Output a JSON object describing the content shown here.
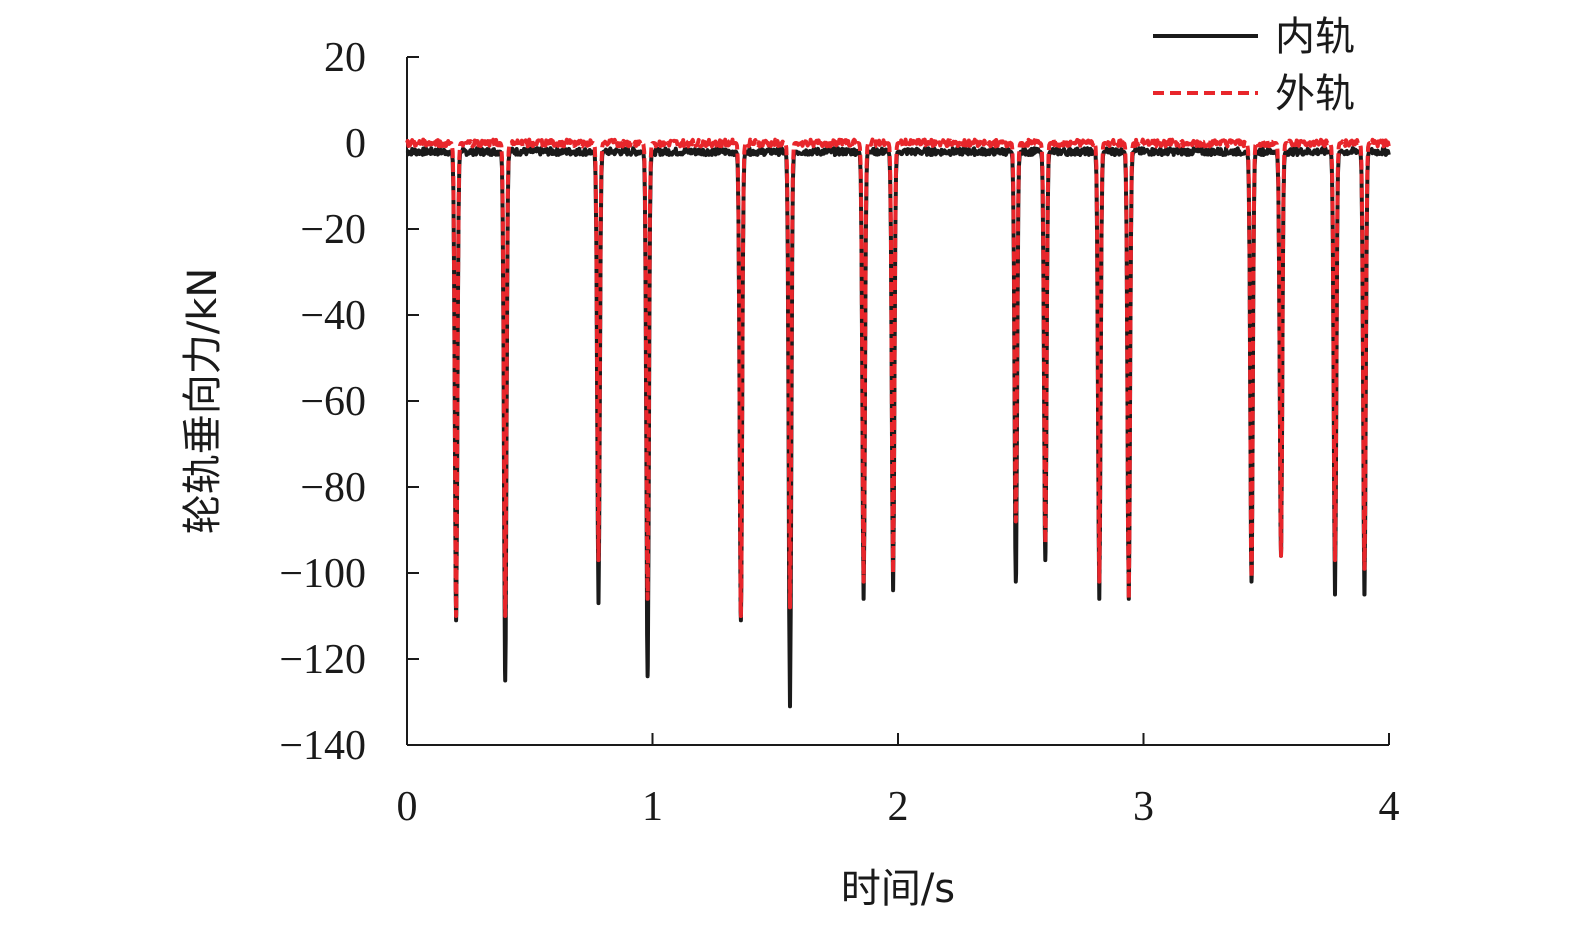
{
  "chart_data": {
    "type": "line",
    "xlabel": "时间/s",
    "ylabel": "轮轨垂向力/kN",
    "xlim": [
      0,
      4
    ],
    "ylim": [
      -140,
      20
    ],
    "xticks": [
      "0",
      "1",
      "2",
      "3",
      "4"
    ],
    "yticks": [
      "20",
      "0",
      "−20",
      "−40",
      "−60",
      "−80",
      "−100",
      "−120",
      "−140"
    ],
    "grid": false,
    "legend_position": "top-right",
    "colors": {
      "inner": "#1a1a1a",
      "outer": "#e8262b"
    },
    "series": [
      {
        "name": "内轨",
        "style": "solid",
        "baseline": -2,
        "spike_times": [
          0.2,
          0.4,
          0.78,
          0.98,
          1.36,
          1.56,
          1.86,
          1.98,
          2.48,
          2.6,
          2.82,
          2.94,
          3.44,
          3.56,
          3.78,
          3.9
        ],
        "spike_minima": [
          -111,
          -125,
          -107,
          -124,
          -111,
          -131,
          -106,
          -104,
          -102,
          -97,
          -106,
          -106,
          -102,
          -96,
          -105,
          -105
        ]
      },
      {
        "name": "外轨",
        "style": "dashed",
        "baseline": 0,
        "spike_times": [
          0.2,
          0.4,
          0.78,
          0.98,
          1.36,
          1.56,
          1.86,
          1.98,
          2.48,
          2.6,
          2.82,
          2.94,
          3.44,
          3.56,
          3.78,
          3.9
        ],
        "spike_minima": [
          -110,
          -110,
          -97,
          -106,
          -110,
          -108,
          -102,
          -100,
          -88,
          -93,
          -102,
          -106,
          -101,
          -96,
          -97,
          -99
        ]
      }
    ]
  }
}
